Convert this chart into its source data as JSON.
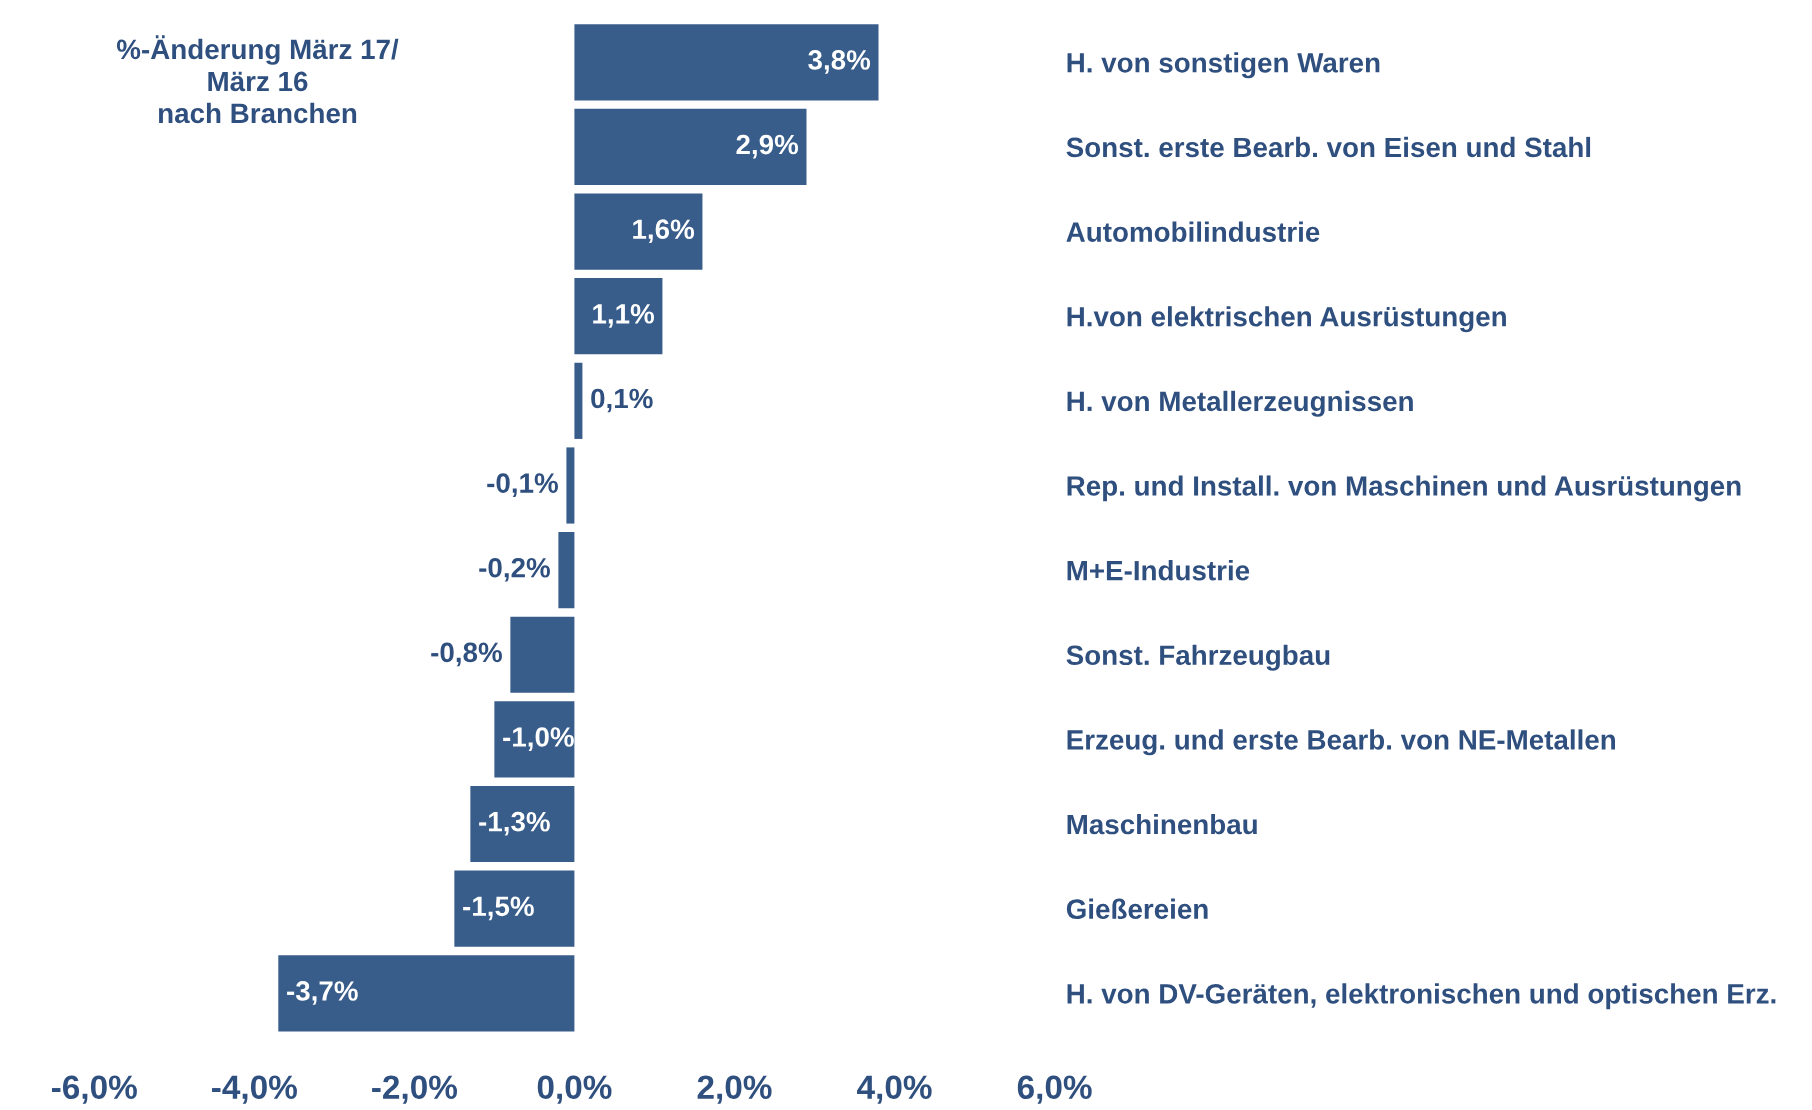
{
  "chart_data": {
    "type": "bar",
    "orientation": "horizontal",
    "title": "%-Änderung März 17/\nMärz 16\nnach Branchen",
    "categories": [
      "H. von sonstigen Waren",
      "Sonst. erste Bearb. von Eisen und Stahl",
      "Automobilindustrie",
      "H.von elektrischen Ausrüstungen",
      "H. von Metallerzeugnissen",
      "Rep. und Install. von Maschinen und Ausrüstungen",
      "M+E-Industrie",
      "Sonst. Fahrzeugbau",
      "Erzeug. und erste Bearb. von NE-Metallen",
      "Maschinenbau",
      "Gießereien",
      "H. von DV-Geräten, elektronischen und optischen Erz."
    ],
    "values": [
      3.8,
      2.9,
      1.6,
      1.1,
      0.1,
      -0.1,
      -0.2,
      -0.8,
      -1.0,
      -1.3,
      -1.5,
      -3.7
    ],
    "value_labels": [
      "3,8%",
      "2,9%",
      "1,6%",
      "1,1%",
      "0,1%",
      "-0,1%",
      "-0,2%",
      "-0,8%",
      "-1,0%",
      "-1,3%",
      "-1,5%",
      "-3,7%"
    ],
    "color": "#385d8a",
    "xlim": [
      -6,
      6
    ],
    "xticks": [
      {
        "value": -6,
        "label": "-6,0%"
      },
      {
        "value": -4,
        "label": "-4,0%"
      },
      {
        "value": -2,
        "label": "-2,0%"
      },
      {
        "value": 0,
        "label": "0,0%"
      },
      {
        "value": 2,
        "label": "2,0%"
      },
      {
        "value": 4,
        "label": "4,0%"
      },
      {
        "value": 6,
        "label": "6,0%"
      }
    ],
    "grid": false,
    "legend": false
  }
}
